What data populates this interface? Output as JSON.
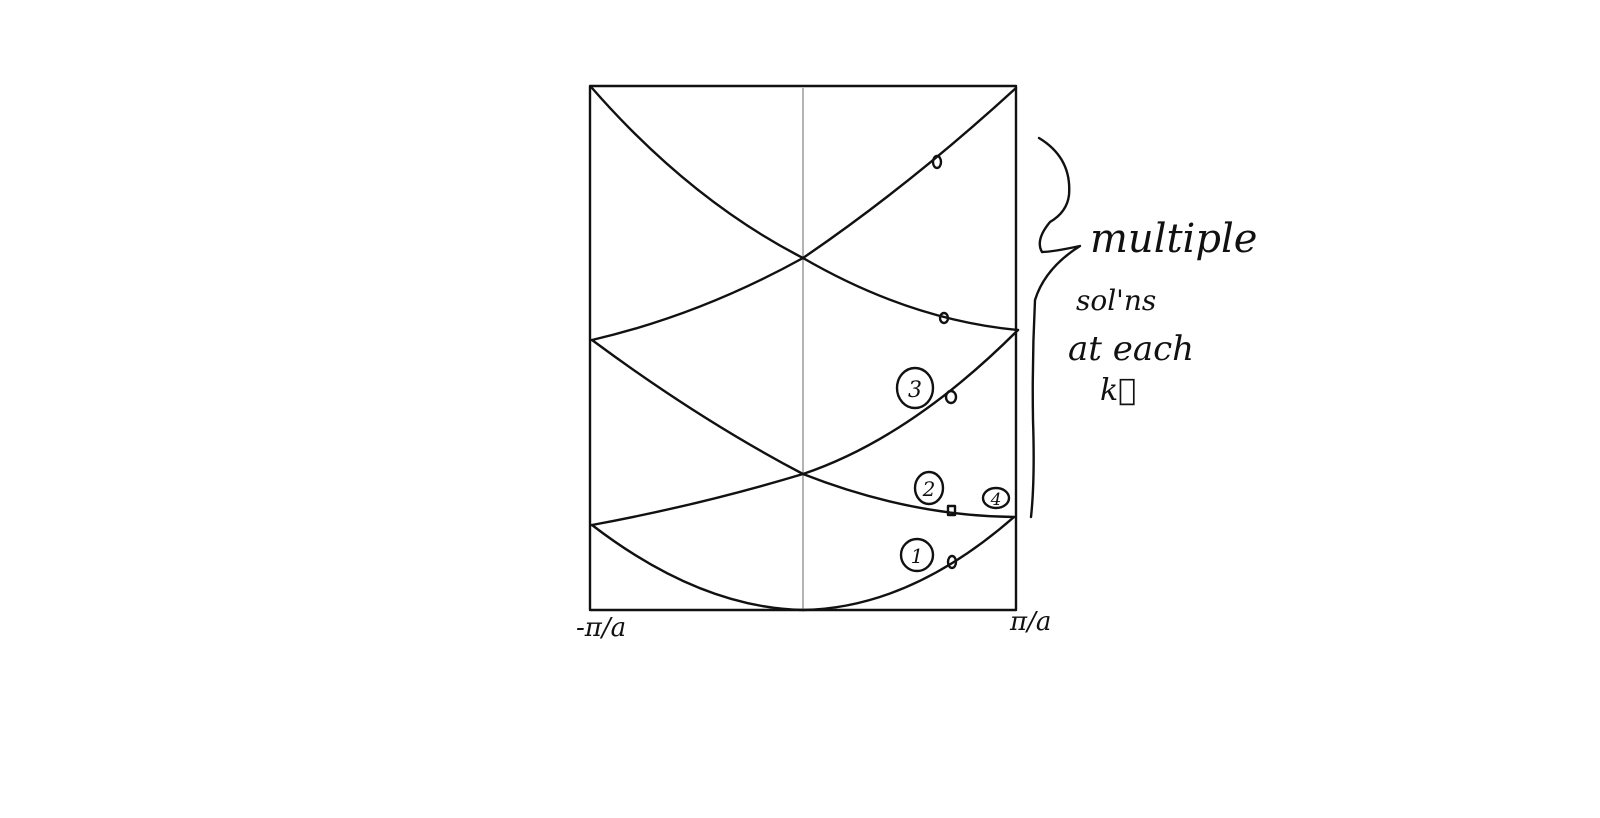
{
  "axis": {
    "left_label": "-π/a",
    "right_label": "π/a"
  },
  "band_markers": [
    {
      "id": "1",
      "label": "1"
    },
    {
      "id": "2",
      "label": "2"
    },
    {
      "id": "3",
      "label": "3"
    },
    {
      "id": "4",
      "label": "4"
    }
  ],
  "annotation": {
    "line1": "multiple",
    "line2": "sol'ns",
    "line3": "at each",
    "line4": "k⃗"
  }
}
